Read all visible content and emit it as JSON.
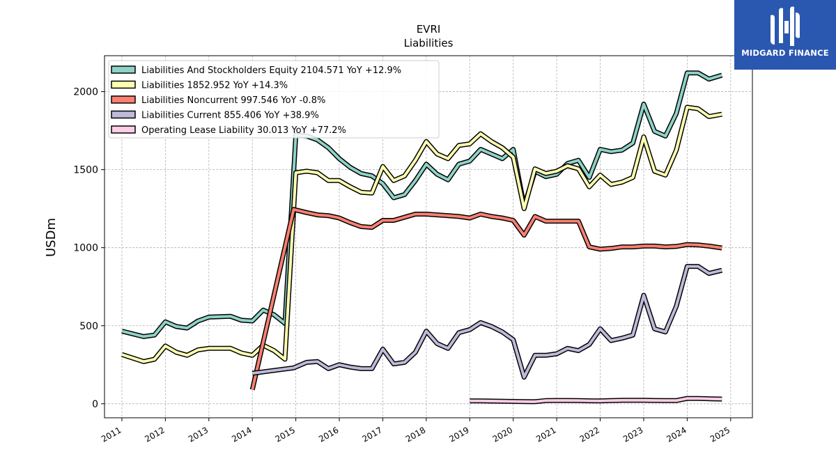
{
  "chart_data": {
    "type": "line",
    "title": "EVRI",
    "subtitle": "Liabilities",
    "ylabel": "USDm",
    "xlabel": "",
    "xlim": [
      2010.6,
      2025.5
    ],
    "ylim": [
      -90,
      2230
    ],
    "xticks": [
      2011,
      2012,
      2013,
      2014,
      2015,
      2016,
      2017,
      2018,
      2019,
      2020,
      2021,
      2022,
      2023,
      2024,
      2025
    ],
    "xtick_labels": [
      "2011",
      "2012",
      "2013",
      "2014",
      "2015",
      "2016",
      "2017",
      "2018",
      "2019",
      "2020",
      "2021",
      "2022",
      "2023",
      "2024",
      "2025"
    ],
    "yticks": [
      0,
      500,
      1000,
      1500,
      2000
    ],
    "ytick_labels": [
      "0",
      "500",
      "1000",
      "1500",
      "2000"
    ],
    "grid": true,
    "legend_position": "top-left",
    "series": [
      {
        "name": "Liabilities And Stockholders Equity",
        "legend": "Liabilities And Stockholders Equity  2104.571 YoY +12.9%",
        "color": "#8dd3c7",
        "x": [
          2011.0,
          2011.5,
          2011.75,
          2012.0,
          2012.25,
          2012.5,
          2012.75,
          2013.0,
          2013.5,
          2013.75,
          2014.0,
          2014.25,
          2014.5,
          2014.75,
          2015.0,
          2015.25,
          2015.5,
          2015.75,
          2016.0,
          2016.25,
          2016.5,
          2016.75,
          2017.0,
          2017.25,
          2017.5,
          2017.75,
          2018.0,
          2018.25,
          2018.5,
          2018.75,
          2019.0,
          2019.25,
          2019.5,
          2019.75,
          2020.0,
          2020.25,
          2020.5,
          2020.75,
          2021.0,
          2021.25,
          2021.5,
          2021.75,
          2022.0,
          2022.25,
          2022.5,
          2022.75,
          2023.0,
          2023.25,
          2023.5,
          2023.75,
          2024.0,
          2024.25,
          2024.5,
          2024.8
        ],
        "y": [
          465,
          430,
          440,
          525,
          495,
          485,
          530,
          555,
          560,
          535,
          530,
          600,
          570,
          515,
          1720,
          1715,
          1690,
          1640,
          1570,
          1515,
          1475,
          1460,
          1410,
          1320,
          1340,
          1430,
          1535,
          1470,
          1435,
          1535,
          1555,
          1630,
          1600,
          1570,
          1630,
          1265,
          1490,
          1455,
          1470,
          1540,
          1560,
          1450,
          1630,
          1615,
          1625,
          1670,
          1920,
          1745,
          1715,
          1860,
          2120,
          2120,
          2080,
          2105
        ]
      },
      {
        "name": "Liabilities",
        "legend": "Liabilities  1852.952 YoY +14.3%",
        "color": "#ffffb3",
        "x": [
          2011.0,
          2011.5,
          2011.75,
          2012.0,
          2012.25,
          2012.5,
          2012.75,
          2013.0,
          2013.5,
          2013.75,
          2014.0,
          2014.25,
          2014.5,
          2014.75,
          2015.0,
          2015.25,
          2015.5,
          2015.75,
          2016.0,
          2016.25,
          2016.5,
          2016.75,
          2017.0,
          2017.25,
          2017.5,
          2017.75,
          2018.0,
          2018.25,
          2018.5,
          2018.75,
          2019.0,
          2019.25,
          2019.5,
          2019.75,
          2020.0,
          2020.25,
          2020.5,
          2020.75,
          2021.0,
          2021.25,
          2021.5,
          2021.75,
          2022.0,
          2022.25,
          2022.5,
          2022.75,
          2023.0,
          2023.25,
          2023.5,
          2023.75,
          2024.0,
          2024.25,
          2024.5,
          2024.8
        ],
        "y": [
          315,
          270,
          285,
          370,
          330,
          310,
          345,
          355,
          355,
          325,
          310,
          375,
          340,
          285,
          1480,
          1490,
          1480,
          1430,
          1430,
          1390,
          1355,
          1350,
          1520,
          1430,
          1460,
          1560,
          1680,
          1600,
          1570,
          1655,
          1665,
          1730,
          1680,
          1640,
          1580,
          1250,
          1505,
          1475,
          1490,
          1525,
          1505,
          1390,
          1465,
          1405,
          1420,
          1450,
          1710,
          1490,
          1465,
          1625,
          1900,
          1890,
          1840,
          1855
        ]
      },
      {
        "name": "Liabilities Noncurrent",
        "legend": "Liabilities Noncurrent  997.546 YoY -0.8%",
        "color": "#fb8072",
        "x": [
          2014.0,
          2014.95,
          2015.25,
          2015.5,
          2015.75,
          2016.0,
          2016.25,
          2016.5,
          2016.75,
          2017.0,
          2017.25,
          2017.5,
          2017.75,
          2018.0,
          2018.25,
          2018.5,
          2018.75,
          2019.0,
          2019.25,
          2019.5,
          2019.75,
          2020.0,
          2020.25,
          2020.5,
          2020.75,
          2021.0,
          2021.25,
          2021.5,
          2021.75,
          2022.0,
          2022.25,
          2022.5,
          2022.75,
          2023.0,
          2023.25,
          2023.5,
          2023.75,
          2024.0,
          2024.25,
          2024.5,
          2024.8
        ],
        "y": [
          90,
          1245,
          1225,
          1210,
          1205,
          1190,
          1160,
          1135,
          1130,
          1175,
          1175,
          1195,
          1215,
          1215,
          1210,
          1205,
          1200,
          1190,
          1215,
          1200,
          1190,
          1175,
          1080,
          1200,
          1170,
          1170,
          1170,
          1170,
          1005,
          990,
          995,
          1005,
          1005,
          1010,
          1010,
          1005,
          1008,
          1020,
          1018,
          1010,
          998
        ]
      },
      {
        "name": "Liabilities Current",
        "legend": "Liabilities Current  855.406 YoY +38.9%",
        "color": "#bebada",
        "x": [
          2014.0,
          2014.95,
          2015.25,
          2015.5,
          2015.75,
          2016.0,
          2016.25,
          2016.5,
          2016.75,
          2017.0,
          2017.25,
          2017.5,
          2017.75,
          2018.0,
          2018.25,
          2018.5,
          2018.75,
          2019.0,
          2019.25,
          2019.5,
          2019.75,
          2020.0,
          2020.25,
          2020.5,
          2020.75,
          2021.0,
          2021.25,
          2021.5,
          2021.75,
          2022.0,
          2022.25,
          2022.5,
          2022.75,
          2023.0,
          2023.25,
          2023.5,
          2023.75,
          2024.0,
          2024.25,
          2024.5,
          2024.8
        ],
        "y": [
          195,
          230,
          265,
          270,
          225,
          250,
          235,
          225,
          225,
          350,
          255,
          265,
          330,
          465,
          385,
          355,
          455,
          475,
          520,
          495,
          460,
          410,
          170,
          310,
          310,
          320,
          355,
          340,
          380,
          480,
          405,
          420,
          440,
          695,
          480,
          460,
          625,
          880,
          880,
          835,
          855
        ]
      },
      {
        "name": "Operating Lease Liability",
        "legend": "Operating Lease Liability  30.013 YoY +77.2%",
        "color": "#fccde5",
        "x": [
          2019.0,
          2019.25,
          2019.5,
          2019.75,
          2020.0,
          2020.25,
          2020.5,
          2020.75,
          2021.0,
          2021.25,
          2021.5,
          2021.75,
          2022.0,
          2022.25,
          2022.5,
          2022.75,
          2023.0,
          2023.25,
          2023.5,
          2023.75,
          2024.0,
          2024.25,
          2024.5,
          2024.8
        ],
        "y": [
          18,
          18,
          17,
          16,
          15,
          14,
          13,
          20,
          21,
          21,
          20,
          19,
          18,
          20,
          22,
          22,
          22,
          21,
          20,
          20,
          34,
          34,
          32,
          30
        ]
      }
    ]
  },
  "logo": {
    "text": "MIDGARD FINANCE"
  }
}
